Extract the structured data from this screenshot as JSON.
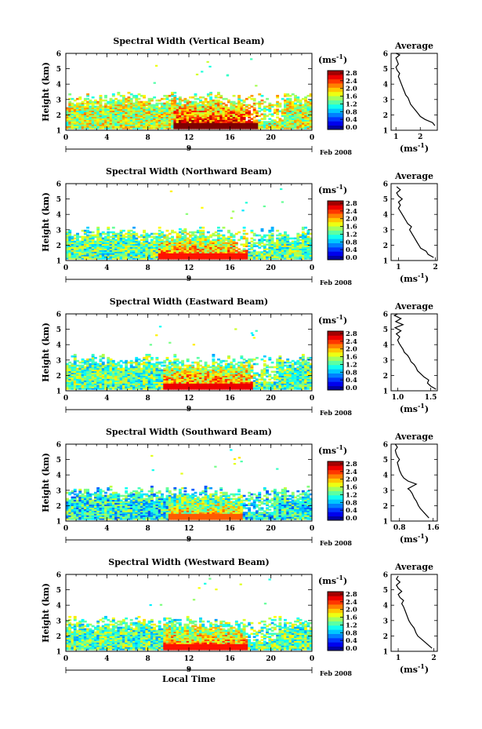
{
  "chart_data": [
    {
      "type": "heatmap",
      "title": "Spectral Width (Vertical Beam)",
      "xlabel": "",
      "ylabel": "Height (km)",
      "xticks": [
        "0",
        "4",
        "8",
        "12",
        "16",
        "20",
        "0"
      ],
      "yticks": [
        "1",
        "2",
        "3",
        "4",
        "5",
        "6"
      ],
      "xlim": [
        0,
        24
      ],
      "ylim": [
        1,
        6
      ],
      "date_marker": "9",
      "date_label": "Feb 2008",
      "colorbar": {
        "unit_base": "(ms",
        "unit_exp": "-1",
        "unit_close": ")",
        "ticks": [
          "2.8",
          "2.4",
          "2.0",
          "1.6",
          "1.2",
          "0.8",
          "0.4",
          "0.0"
        ],
        "range": [
          0.0,
          2.8
        ]
      },
      "field": {
        "height_limit": 3.2,
        "strong_band": [
          10.5,
          18.5
        ],
        "strong_level": 2.5,
        "base_level": 1.6,
        "gap_region": [
          17.5,
          21.0
        ]
      },
      "profile": {
        "title": "Average",
        "xlabel_base": "(ms",
        "xlabel_exp": "-1",
        "xlabel_close": ")",
        "xticks": [
          "1",
          "2"
        ],
        "xtick_values": [
          1,
          2
        ],
        "xlim": [
          0.8,
          2.7
        ],
        "ylim": [
          1,
          6
        ],
        "yticks": [
          "1",
          "2",
          "3",
          "4",
          "5",
          "6"
        ],
        "x": [
          2.6,
          2.5,
          2.2,
          2.0,
          1.9,
          1.8,
          1.7,
          1.6,
          1.55,
          1.5,
          1.4,
          1.35,
          1.3,
          1.25,
          1.2,
          1.15,
          1.1,
          1.15,
          1.05,
          1.0,
          1.1,
          1.05,
          1.0,
          1.15,
          1.0,
          1.05
        ],
        "y": [
          1.3,
          1.5,
          1.7,
          1.9,
          2.1,
          2.3,
          2.5,
          2.7,
          2.9,
          3.1,
          3.3,
          3.5,
          3.7,
          3.9,
          4.1,
          4.3,
          4.5,
          4.7,
          4.9,
          5.1,
          5.3,
          5.5,
          5.7,
          5.9,
          6.0,
          6.0
        ]
      }
    },
    {
      "type": "heatmap",
      "title": "Spectral Width (Northward Beam)",
      "xlabel": "",
      "ylabel": "Height (km)",
      "xticks": [
        "0",
        "4",
        "8",
        "12",
        "16",
        "20",
        "0"
      ],
      "yticks": [
        "1",
        "2",
        "3",
        "4",
        "5",
        "6"
      ],
      "xlim": [
        0,
        24
      ],
      "ylim": [
        1,
        6
      ],
      "date_marker": "9",
      "date_label": "Feb 2008",
      "colorbar": {
        "unit_base": "(ms",
        "unit_exp": "-1",
        "unit_close": ")",
        "ticks": [
          "2.8",
          "2.4",
          "2.0",
          "1.6",
          "1.2",
          "0.8",
          "0.4",
          "0.0"
        ],
        "range": [
          0.0,
          2.8
        ]
      },
      "field": {
        "height_limit": 2.9,
        "strong_band": [
          9.0,
          17.5
        ],
        "strong_level": 2.1,
        "base_level": 1.3,
        "gap_region": [
          16.5,
          19.5
        ]
      },
      "profile": {
        "title": "Average",
        "xlabel_base": "(ms",
        "xlabel_exp": "-1",
        "xlabel_close": ")",
        "xticks": [
          "1",
          "2"
        ],
        "xtick_values": [
          1,
          2
        ],
        "xlim": [
          0.8,
          2.05
        ],
        "ylim": [
          1,
          6
        ],
        "yticks": [
          "1",
          "2",
          "3",
          "4",
          "5",
          "6"
        ],
        "x": [
          1.95,
          1.8,
          1.75,
          1.6,
          1.55,
          1.5,
          1.45,
          1.4,
          1.35,
          1.3,
          1.35,
          1.25,
          1.2,
          1.15,
          1.1,
          1.05,
          1.0,
          1.05,
          1.0,
          1.1,
          1.0,
          0.95,
          1.05,
          0.95
        ],
        "y": [
          1.2,
          1.4,
          1.6,
          1.8,
          2.0,
          2.2,
          2.4,
          2.6,
          2.8,
          3.0,
          3.2,
          3.4,
          3.6,
          3.8,
          4.0,
          4.2,
          4.4,
          4.6,
          4.8,
          5.0,
          5.2,
          5.4,
          5.6,
          5.8
        ]
      }
    },
    {
      "type": "heatmap",
      "title": "Spectral Width (Eastward Beam)",
      "xlabel": "",
      "ylabel": "Height (km)",
      "xticks": [
        "0",
        "4",
        "8",
        "12",
        "16",
        "20",
        "0"
      ],
      "yticks": [
        "1",
        "2",
        "3",
        "4",
        "5",
        "6"
      ],
      "xlim": [
        0,
        24
      ],
      "ylim": [
        1,
        6
      ],
      "date_marker": "9",
      "date_label": "Feb 2008",
      "colorbar": {
        "unit_base": "(ms",
        "unit_exp": "-1",
        "unit_close": ")",
        "ticks": [
          "2.8",
          "2.4",
          "2.0",
          "1.6",
          "1.2",
          "0.8",
          "0.4",
          "0.0"
        ],
        "range": [
          0.0,
          2.8
        ]
      },
      "field": {
        "height_limit": 3.1,
        "strong_band": [
          9.5,
          18.0
        ],
        "strong_level": 2.2,
        "base_level": 1.3,
        "gap_region": [
          18.0,
          20.5
        ]
      },
      "profile": {
        "title": "Average",
        "xlabel_base": "(ms",
        "xlabel_exp": "-1",
        "xlabel_close": ")",
        "xticks": [
          "1.0",
          "1.5"
        ],
        "xtick_values": [
          1.0,
          1.5
        ],
        "xlim": [
          0.9,
          1.6
        ],
        "ylim": [
          1,
          6
        ],
        "yticks": [
          "1",
          "2",
          "3",
          "4",
          "5",
          "6"
        ],
        "x": [
          1.58,
          1.5,
          1.45,
          1.47,
          1.4,
          1.35,
          1.3,
          1.28,
          1.25,
          1.2,
          1.18,
          1.15,
          1.1,
          1.08,
          1.05,
          1.02,
          1.0,
          1.03,
          0.98,
          1.05,
          0.96,
          1.08,
          0.97,
          1.05,
          0.95,
          1.0
        ],
        "y": [
          1.1,
          1.3,
          1.5,
          1.7,
          1.9,
          2.1,
          2.3,
          2.5,
          2.7,
          2.9,
          3.1,
          3.3,
          3.5,
          3.7,
          3.9,
          4.1,
          4.3,
          4.5,
          4.7,
          4.9,
          5.1,
          5.3,
          5.5,
          5.7,
          5.9,
          6.0
        ]
      }
    },
    {
      "type": "heatmap",
      "title": "Spectral Width (Southward Beam)",
      "xlabel": "",
      "ylabel": "Height (km)",
      "xticks": [
        "0",
        "4",
        "8",
        "12",
        "16",
        "20",
        "0"
      ],
      "yticks": [
        "1",
        "2",
        "3",
        "4",
        "5",
        "6"
      ],
      "xlim": [
        0,
        24
      ],
      "ylim": [
        1,
        6
      ],
      "date_marker": "9",
      "date_label": "Feb 2008",
      "colorbar": {
        "unit_base": "(ms",
        "unit_exp": "-1",
        "unit_close": ")",
        "ticks": [
          "2.8",
          "2.4",
          "2.0",
          "1.6",
          "1.2",
          "0.8",
          "0.4",
          "0.0"
        ],
        "range": [
          0.0,
          2.8
        ]
      },
      "field": {
        "height_limit": 3.0,
        "strong_band": [
          10.0,
          17.0
        ],
        "strong_level": 1.9,
        "base_level": 1.1,
        "gap_region": [
          17.0,
          20.0
        ]
      },
      "profile": {
        "title": "Average",
        "xlabel_base": "(ms",
        "xlabel_exp": "-1",
        "xlabel_close": ")",
        "xticks": [
          "0.8",
          "1.6"
        ],
        "xtick_values": [
          0.8,
          1.6
        ],
        "xlim": [
          0.6,
          1.7
        ],
        "ylim": [
          1,
          6
        ],
        "yticks": [
          "1",
          "2",
          "3",
          "4",
          "5",
          "6"
        ],
        "x": [
          1.5,
          1.4,
          1.3,
          1.25,
          1.2,
          1.15,
          1.1,
          1.05,
          1.0,
          1.1,
          1.2,
          1.0,
          0.9,
          0.85,
          0.8,
          0.78,
          0.75,
          0.8,
          0.75,
          0.72,
          0.7,
          0.75,
          0.7
        ],
        "y": [
          1.2,
          1.5,
          1.8,
          2.0,
          2.3,
          2.5,
          2.8,
          3.0,
          3.1,
          3.25,
          3.4,
          3.6,
          3.8,
          4.0,
          4.3,
          4.5,
          4.8,
          5.0,
          5.2,
          5.4,
          5.6,
          5.8,
          6.0
        ]
      }
    },
    {
      "type": "heatmap",
      "title": "Spectral Width (Westward Beam)",
      "xlabel": "Local Time",
      "ylabel": "Height (km)",
      "xticks": [
        "0",
        "4",
        "8",
        "12",
        "16",
        "20",
        "0"
      ],
      "yticks": [
        "1",
        "2",
        "3",
        "4",
        "5",
        "6"
      ],
      "xlim": [
        0,
        24
      ],
      "ylim": [
        1,
        6
      ],
      "date_marker": "9",
      "date_label": "Feb 2008",
      "colorbar": {
        "unit_base": "(ms",
        "unit_exp": "-1",
        "unit_close": ")",
        "ticks": [
          "2.8",
          "2.4",
          "2.0",
          "1.6",
          "1.2",
          "0.8",
          "0.4",
          "0.0"
        ],
        "range": [
          0.0,
          2.8
        ]
      },
      "field": {
        "height_limit": 3.0,
        "strong_band": [
          9.5,
          17.5
        ],
        "strong_level": 2.1,
        "base_level": 1.3,
        "gap_region": [
          17.5,
          20.5
        ]
      },
      "profile": {
        "title": "Average",
        "xlabel_base": "(ms",
        "xlabel_exp": "-1",
        "xlabel_close": ")",
        "xticks": [
          "1",
          "2"
        ],
        "xtick_values": [
          1,
          2
        ],
        "xlim": [
          0.8,
          2.1
        ],
        "ylim": [
          1,
          6
        ],
        "yticks": [
          "1",
          "2",
          "3",
          "4",
          "5",
          "6"
        ],
        "x": [
          1.95,
          1.85,
          1.75,
          1.65,
          1.55,
          1.5,
          1.45,
          1.35,
          1.3,
          1.25,
          1.2,
          1.15,
          1.1,
          1.15,
          1.05,
          1.0,
          1.1,
          1.0,
          0.95,
          1.05,
          0.95,
          1.0
        ],
        "y": [
          1.2,
          1.4,
          1.6,
          1.8,
          2.0,
          2.2,
          2.5,
          2.8,
          3.0,
          3.3,
          3.6,
          3.9,
          4.1,
          4.3,
          4.5,
          4.7,
          4.9,
          5.1,
          5.3,
          5.5,
          5.7,
          5.9
        ]
      }
    }
  ]
}
